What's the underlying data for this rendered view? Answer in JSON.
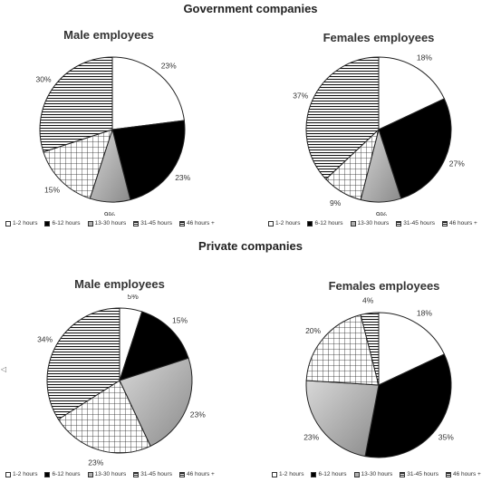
{
  "sections": [
    {
      "title": "Government companies"
    },
    {
      "title": "Private companies"
    }
  ],
  "legend_labels": [
    "1-2 hours",
    "6-12 hours",
    "13-30 hours",
    "31-45 hours",
    "46 hours +"
  ],
  "colors": {
    "c1": "#ffffff",
    "c2": "#000000",
    "c3": "#b0b0b0",
    "c4": "#ffffff",
    "c5": "#ffffff",
    "stroke": "#222222"
  },
  "chart_data": [
    {
      "type": "pie",
      "group": "Government companies",
      "title": "Male employees",
      "categories": [
        "1-2 hours",
        "6-12 hours",
        "13-30 hours",
        "31-45 hours",
        "46 hours +"
      ],
      "values": [
        23,
        23,
        9,
        15,
        30
      ],
      "labels": [
        "23%",
        "23%",
        "9%",
        "15%",
        "30%"
      ],
      "legend": "bottom"
    },
    {
      "type": "pie",
      "group": "Government companies",
      "title": "Females employees",
      "categories": [
        "1-2 hours",
        "6-12 hours",
        "13-30 hours",
        "31-45 hours",
        "46 hours +"
      ],
      "values": [
        18,
        27,
        9,
        9,
        37
      ],
      "labels": [
        "18%",
        "27%",
        "9%",
        "9%",
        "37%"
      ],
      "legend": "bottom"
    },
    {
      "type": "pie",
      "group": "Private companies",
      "title": "Male employees",
      "categories": [
        "1-2 hours",
        "6-12 hours",
        "13-30 hours",
        "31-45 hours",
        "46 hours +"
      ],
      "values": [
        5,
        15,
        23,
        23,
        34
      ],
      "labels": [
        "5%",
        "15%",
        "23%",
        "23%",
        "34%"
      ],
      "legend": "bottom"
    },
    {
      "type": "pie",
      "group": "Private companies",
      "title": "Females employees",
      "categories": [
        "1-2 hours",
        "6-12 hours",
        "13-30 hours",
        "31-45 hours",
        "46 hours +"
      ],
      "values": [
        18,
        35,
        23,
        20,
        4
      ],
      "labels": [
        "18%",
        "35%",
        "23%",
        "20%",
        "4%"
      ],
      "legend": "bottom"
    }
  ]
}
